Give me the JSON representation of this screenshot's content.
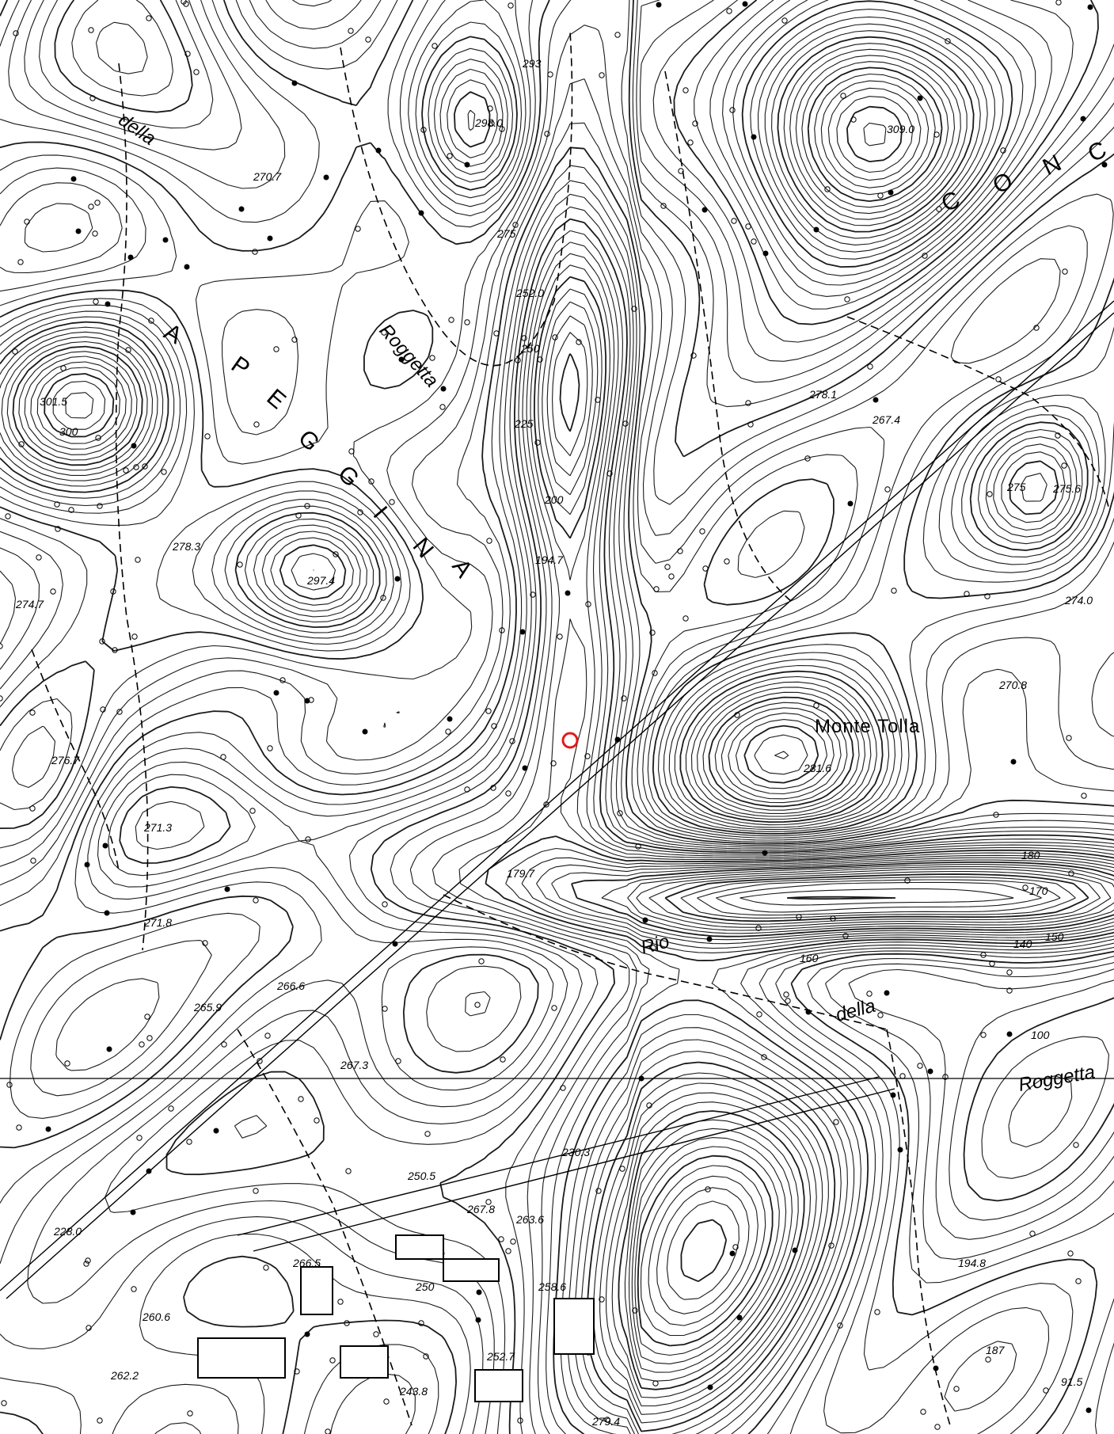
{
  "map": {
    "place_label": "Monte Tolla",
    "region_letters": [
      "A",
      "P",
      "E",
      "G",
      "G",
      "I",
      "N",
      "A"
    ],
    "region_letters_ne": [
      "C",
      "O",
      "N",
      "C"
    ],
    "hydro_labels": {
      "roggetta_nw": "Roggetta",
      "della_nw": "della",
      "rio": "Rio",
      "della_e": "della",
      "roggetta_e": "Roggetta"
    },
    "elevation_labels": [
      "293",
      "298.0",
      "270.7",
      "275",
      "252.0",
      "250",
      "225",
      "200",
      "194.7",
      "301.5",
      "300",
      "278.3",
      "297.4",
      "274.7",
      "276.7",
      "271.3",
      "271.8",
      "265.9",
      "266.6",
      "267.3",
      "250.5",
      "267.8",
      "263.6",
      "230.3",
      "228.0",
      "266.5",
      "250",
      "258.6",
      "252.7",
      "262.2",
      "260.6",
      "243.8",
      "279.4",
      "179.7",
      "309.0",
      "278.1",
      "267.4",
      "275.6",
      "275",
      "274.0",
      "270.8",
      "281.6",
      "140",
      "150",
      "160",
      "170",
      "180",
      "100",
      "194.8",
      "187",
      "91.5"
    ],
    "marker": {
      "symbol": "circle",
      "color": "#e21b1b"
    }
  }
}
